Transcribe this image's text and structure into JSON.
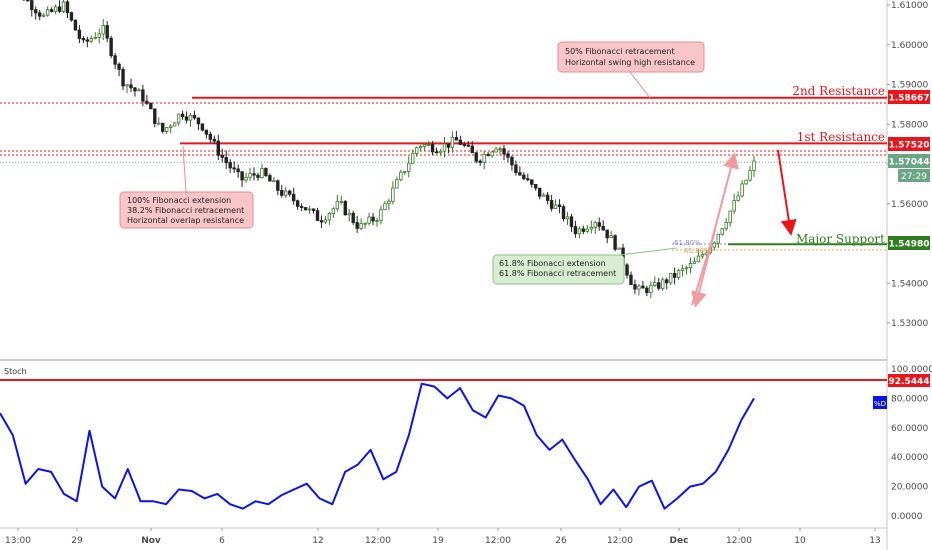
{
  "chart_data": [
    {
      "type": "candlestick",
      "ylim": [
        1.5235,
        1.614
      ],
      "y_ticks": [
        "1.61000",
        "1.60000",
        "1.59000",
        "1.58000",
        "1.57000",
        "1.56000",
        "1.55000",
        "1.54000",
        "1.53000"
      ],
      "x_ticks": [
        "13:00",
        "29",
        "Nov",
        "6",
        "12",
        "12:00",
        "19",
        "12:00",
        "26",
        "12:00",
        "Dec",
        "12:00",
        "10",
        "13"
      ],
      "x_ticks_bold": [
        "Nov",
        "Dec"
      ],
      "levels": [
        {
          "name": "2nd Resistance",
          "price": 1.58667,
          "price_label": "1.58667",
          "color": "#e8151a"
        },
        {
          "name": "1st Resistance",
          "price": 1.5752,
          "price_label": "1.57520",
          "color": "#e8151a"
        },
        {
          "name": "Major Support",
          "price": 1.5498,
          "price_label": "1.54980",
          "color": "#2e7d1e"
        }
      ],
      "current_price": {
        "label": "1.57044",
        "countdown": "27:29",
        "price": 1.57044
      },
      "annotations": [
        {
          "lines": [
            "50% Fibonacci retracement",
            "Horizontal swing high resistance"
          ],
          "color": "pink"
        },
        {
          "lines": [
            "100% Fibonacci extension",
            "38.2% Fibonacci retracement",
            "Horizontal overlap resistance"
          ],
          "color": "pink"
        },
        {
          "lines": [
            "61.8% Fibonacci extension",
            "61.8% Fibonacci retracement"
          ],
          "color": "green"
        }
      ],
      "fib_labels": [
        "61.80%",
        "61.80%"
      ],
      "price_path": [
        1.618,
        1.612,
        1.607,
        1.61,
        1.6,
        1.604,
        1.591,
        1.587,
        1.578,
        1.583,
        1.58,
        1.572,
        1.566,
        1.568,
        1.563,
        1.56,
        1.556,
        1.56,
        1.554,
        1.557,
        1.566,
        1.575,
        1.574,
        1.576,
        1.571,
        1.575,
        1.568,
        1.563,
        1.559,
        1.553,
        1.556,
        1.5495,
        1.538,
        1.539,
        1.542,
        1.545,
        1.551,
        1.56,
        1.57
      ]
    },
    {
      "type": "line",
      "title": "Stoch",
      "series": [
        {
          "name": "%D",
          "color": "#0a14e8",
          "values": [
            70,
            55,
            22,
            32,
            30,
            15,
            10,
            58,
            20,
            12,
            32,
            10,
            10,
            8,
            18,
            17,
            12,
            15,
            8,
            5,
            10,
            8,
            14,
            18,
            22,
            12,
            8,
            30,
            35,
            45,
            25,
            30,
            55,
            90,
            88,
            80,
            87,
            72,
            67,
            82,
            80,
            75,
            55,
            45,
            52,
            38,
            25,
            8,
            18,
            6,
            20,
            24,
            5,
            12,
            20,
            22,
            30,
            45,
            65,
            80
          ]
        }
      ],
      "ylim": [
        0,
        100
      ],
      "y_ticks": [
        "100.0000",
        "80.0000",
        "60.0000",
        "40.0000",
        "20.0000",
        "0.0000"
      ],
      "level": {
        "label": "92.5444",
        "value": 92.5444,
        "color": "#e8151a"
      }
    }
  ]
}
